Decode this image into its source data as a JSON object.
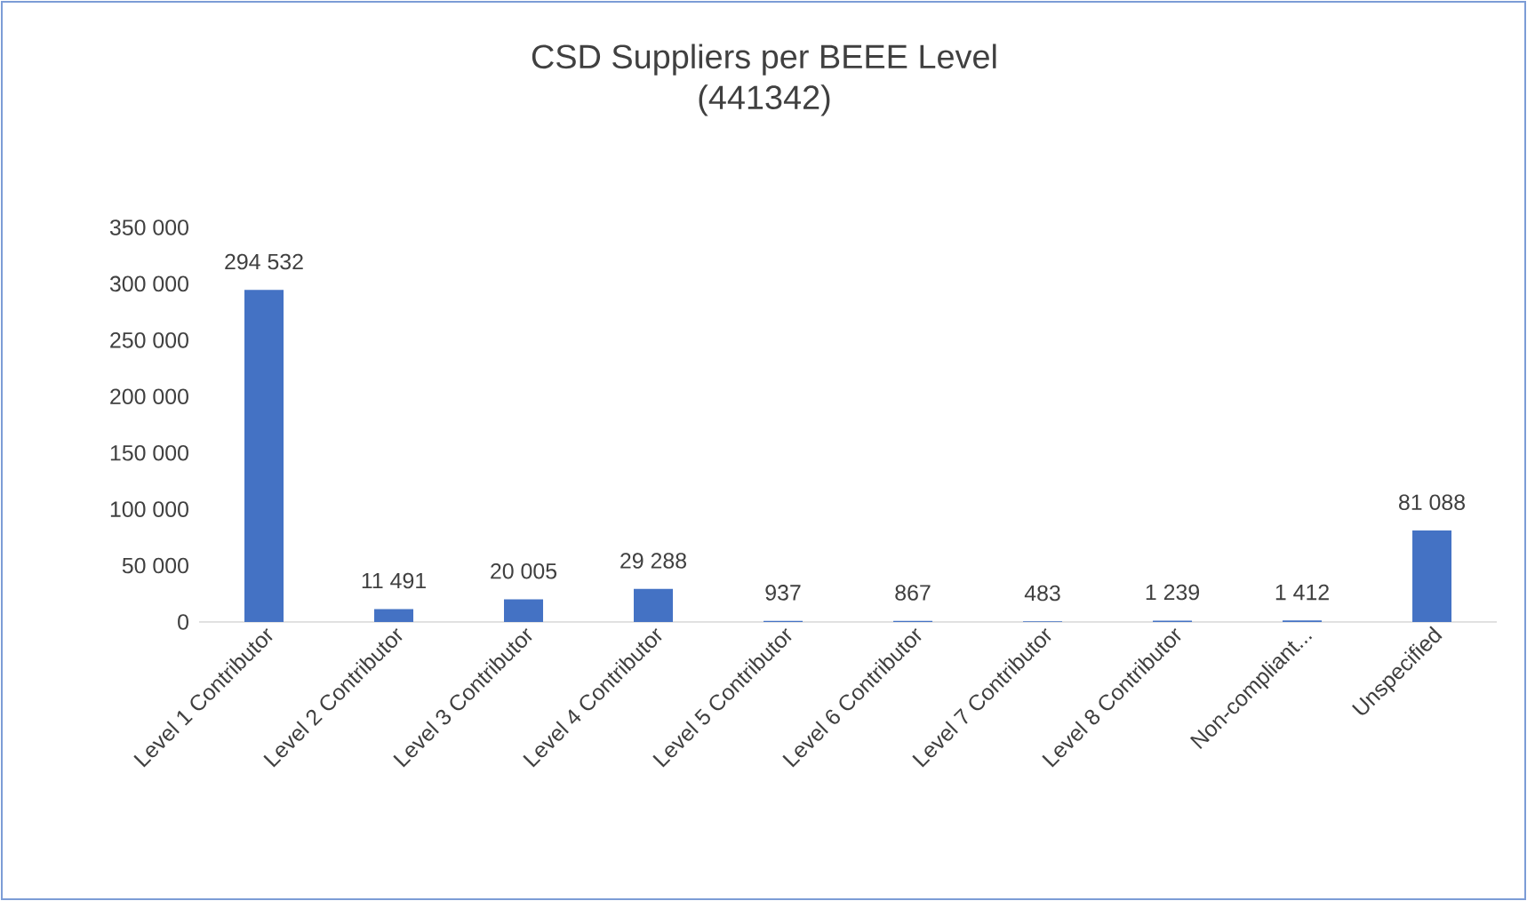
{
  "chart_data": {
    "type": "bar",
    "title": "CSD Suppliers per BEEE Level",
    "subtitle": "(441342)",
    "categories": [
      "Level 1 Contributor",
      "Level 2 Contributor",
      "Level 3 Contributor",
      "Level 4 Contributor",
      "Level 5 Contributor",
      "Level 6 Contributor",
      "Level 7 Contributor",
      "Level 8 Contributor",
      "Non-compliant...",
      "Unspecified"
    ],
    "values": [
      294532,
      11491,
      20005,
      29288,
      937,
      867,
      483,
      1239,
      1412,
      81088
    ],
    "value_labels": [
      "294 532",
      "11 491",
      "20 005",
      "29 288",
      "937",
      "867",
      "483",
      "1 239",
      "1 412",
      "81 088"
    ],
    "color": "#4472c4",
    "ylim": [
      0,
      350000
    ],
    "yticks": [
      {
        "value": 0,
        "label": "0"
      },
      {
        "value": 50000,
        "label": "50 000"
      },
      {
        "value": 100000,
        "label": "100 000"
      },
      {
        "value": 150000,
        "label": "150 000"
      },
      {
        "value": 200000,
        "label": "200 000"
      },
      {
        "value": 250000,
        "label": "250 000"
      },
      {
        "value": 300000,
        "label": "300 000"
      },
      {
        "value": 350000,
        "label": "350 000"
      }
    ],
    "grid": false
  }
}
